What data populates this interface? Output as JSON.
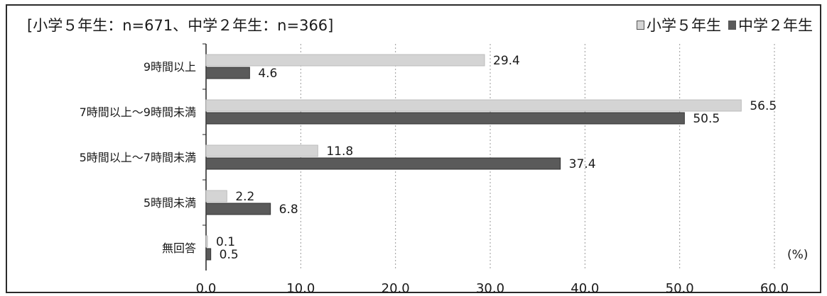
{
  "chart_data": {
    "type": "bar",
    "orientation": "horizontal",
    "sample_note": "[小学５年生：n=671、中学２年生：n=366]",
    "unit": "(%)",
    "categories": [
      "9時間以上",
      "7時間以上～9時間未満",
      "5時間以上～7時間未満",
      "5時間未満",
      "無回答"
    ],
    "series": [
      {
        "name": "小学５年生",
        "values": [
          29.4,
          56.5,
          11.8,
          2.2,
          0.1
        ],
        "color": "#d4d4d4"
      },
      {
        "name": "中学２年生",
        "values": [
          4.6,
          50.5,
          37.4,
          6.8,
          0.5
        ],
        "color": "#5a5a5a"
      }
    ],
    "xlim": [
      0,
      60
    ],
    "xticks": [
      "0.0",
      "10.0",
      "20.0",
      "30.0",
      "40.0",
      "50.0",
      "60.0"
    ],
    "grid": true,
    "legend_position": "top-right"
  }
}
